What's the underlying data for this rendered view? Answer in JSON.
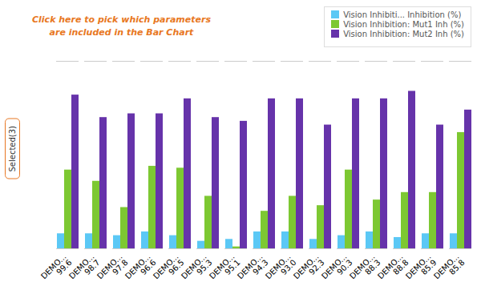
{
  "chart_data": {
    "type": "bar",
    "categories": [
      "DEMO...\n99.6",
      "DEMO...\n98.7",
      "DEMO...\n97.8",
      "DEMO...\n96.6",
      "DEMO...\n96.5",
      "DEMO...\n95.3",
      "DEMO...\n95.1",
      "DEMO...\n94.3",
      "DEMO...\n93.0",
      "DEMO...\n92.3",
      "DEMO...\n90.3",
      "DEMO...\n88.3",
      "DEMO...\n88.8",
      "DEMO...\n85.9",
      "DEMO...\n85.8"
    ],
    "series": [
      {
        "name": "Vision Inhibiti... Inhibition (%)",
        "color": "#5bc8f5",
        "values": [
          8,
          8,
          7,
          9,
          7,
          4,
          5,
          9,
          9,
          5,
          7,
          9,
          6,
          8,
          8
        ]
      },
      {
        "name": "Vision Inhibition: Mut1 Inh (%)",
        "color": "#7dc832",
        "values": [
          42,
          36,
          22,
          44,
          43,
          28,
          1,
          20,
          28,
          23,
          42,
          26,
          30,
          30,
          62
        ]
      },
      {
        "name": "Vision Inhibition: Mut2 Inh (%)",
        "color": "#6633aa",
        "values": [
          82,
          70,
          72,
          72,
          80,
          70,
          68,
          80,
          80,
          66,
          80,
          80,
          84,
          66,
          74
        ]
      }
    ],
    "ylim": [
      0,
      100
    ],
    "tick_labels": "x",
    "grid": false,
    "legend": "upper right",
    "annotations": [
      {
        "text": "Click here to pick which parameters\nare included in the Bar Chart",
        "color": "#e87722"
      },
      {
        "text": "Selected(3)",
        "color": "#e87722"
      }
    ]
  }
}
